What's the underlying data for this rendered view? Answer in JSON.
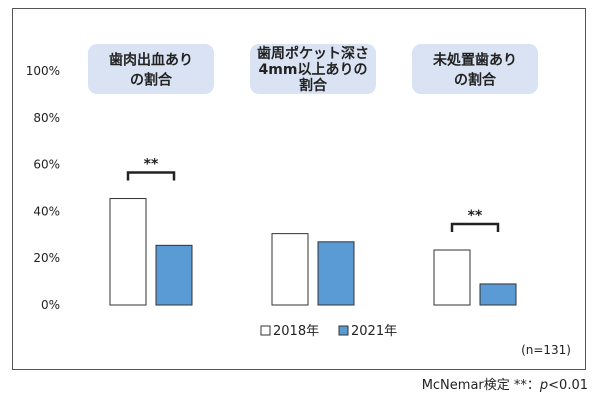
{
  "chart_data": {
    "type": "bar",
    "categories": [
      [
        "歯肉出血あり",
        "の割合"
      ],
      [
        "歯周ポケット深さ",
        "4mm以上ありの",
        "割合"
      ],
      [
        "未処置歯あり",
        "の割合"
      ]
    ],
    "series": [
      {
        "name": "2018年",
        "values": [
          45.5,
          30.5,
          23.5
        ],
        "color": "#ffffff"
      },
      {
        "name": "2021年",
        "values": [
          25.5,
          27.0,
          9.0
        ],
        "color": "#5b9bd5"
      }
    ],
    "ylim": [
      0,
      100
    ],
    "yticks": [
      0,
      20,
      40,
      60,
      80,
      100
    ],
    "ytick_labels": [
      "0%",
      "20%",
      "40%",
      "60%",
      "80%",
      "100%"
    ],
    "significance": [
      {
        "category_index": 0,
        "label": "**"
      },
      {
        "category_index": 2,
        "label": "**"
      }
    ],
    "legend_position": "bottom-center",
    "sample_note": "(n=131)",
    "footnote_text": "McNemar検定  **：",
    "footnote_p": "p",
    "footnote_threshold": "<0.01",
    "category_box_color": "#dae3f3",
    "bar_border_color": "#333333",
    "grid": false
  }
}
